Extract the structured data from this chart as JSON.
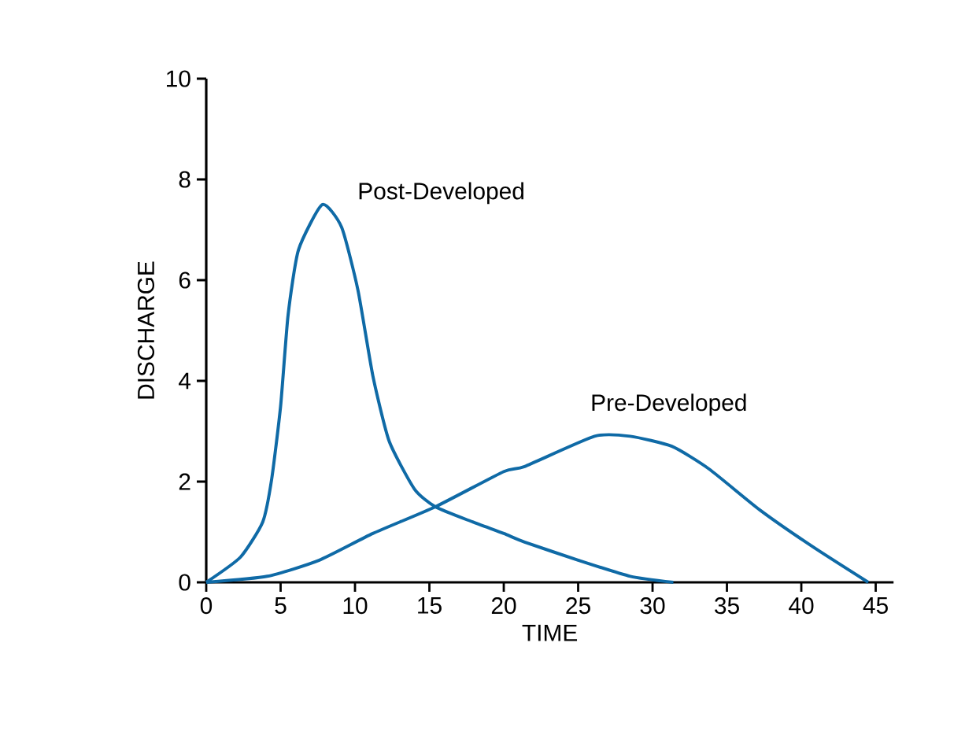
{
  "chart_data": {
    "type": "line",
    "xlabel": "TIME",
    "ylabel": "DISCHARGE",
    "xlim": [
      0,
      46.2
    ],
    "ylim": [
      0,
      10
    ],
    "xticks": [
      0,
      5,
      10,
      15,
      20,
      25,
      30,
      35,
      40,
      45
    ],
    "yticks": [
      0,
      2,
      4,
      6,
      8,
      10
    ],
    "grid": false,
    "legend": false,
    "marker": "none",
    "line_style": "solid",
    "series": [
      {
        "name": "Post-Developed",
        "color": "#0f6aa6",
        "x": [
          0,
          2.3,
          3.8,
          4.4,
          5.0,
          5.5,
          6.2,
          7.8,
          9.1,
          10.2,
          11.2,
          12.3,
          14.0,
          15.4,
          17.9,
          20,
          21.4,
          25,
          28.5,
          31.4
        ],
        "values": [
          0,
          0.5,
          1.2,
          2.05,
          3.5,
          5.3,
          6.6,
          7.5,
          7.05,
          5.8,
          4.1,
          2.8,
          1.85,
          1.5,
          1.2,
          0.97,
          0.8,
          0.44,
          0.12,
          0
        ]
      },
      {
        "name": "Pre-Developed",
        "color": "#0f6aa6",
        "x": [
          0,
          4.1,
          7.6,
          11.2,
          15.4,
          20,
          21.4,
          26.1,
          28.5,
          31.3,
          33.8,
          37.2,
          40.8,
          44.5
        ],
        "values": [
          0,
          0.12,
          0.44,
          0.97,
          1.5,
          2.2,
          2.3,
          2.9,
          2.9,
          2.7,
          2.25,
          1.44,
          0.7,
          0
        ]
      }
    ]
  }
}
